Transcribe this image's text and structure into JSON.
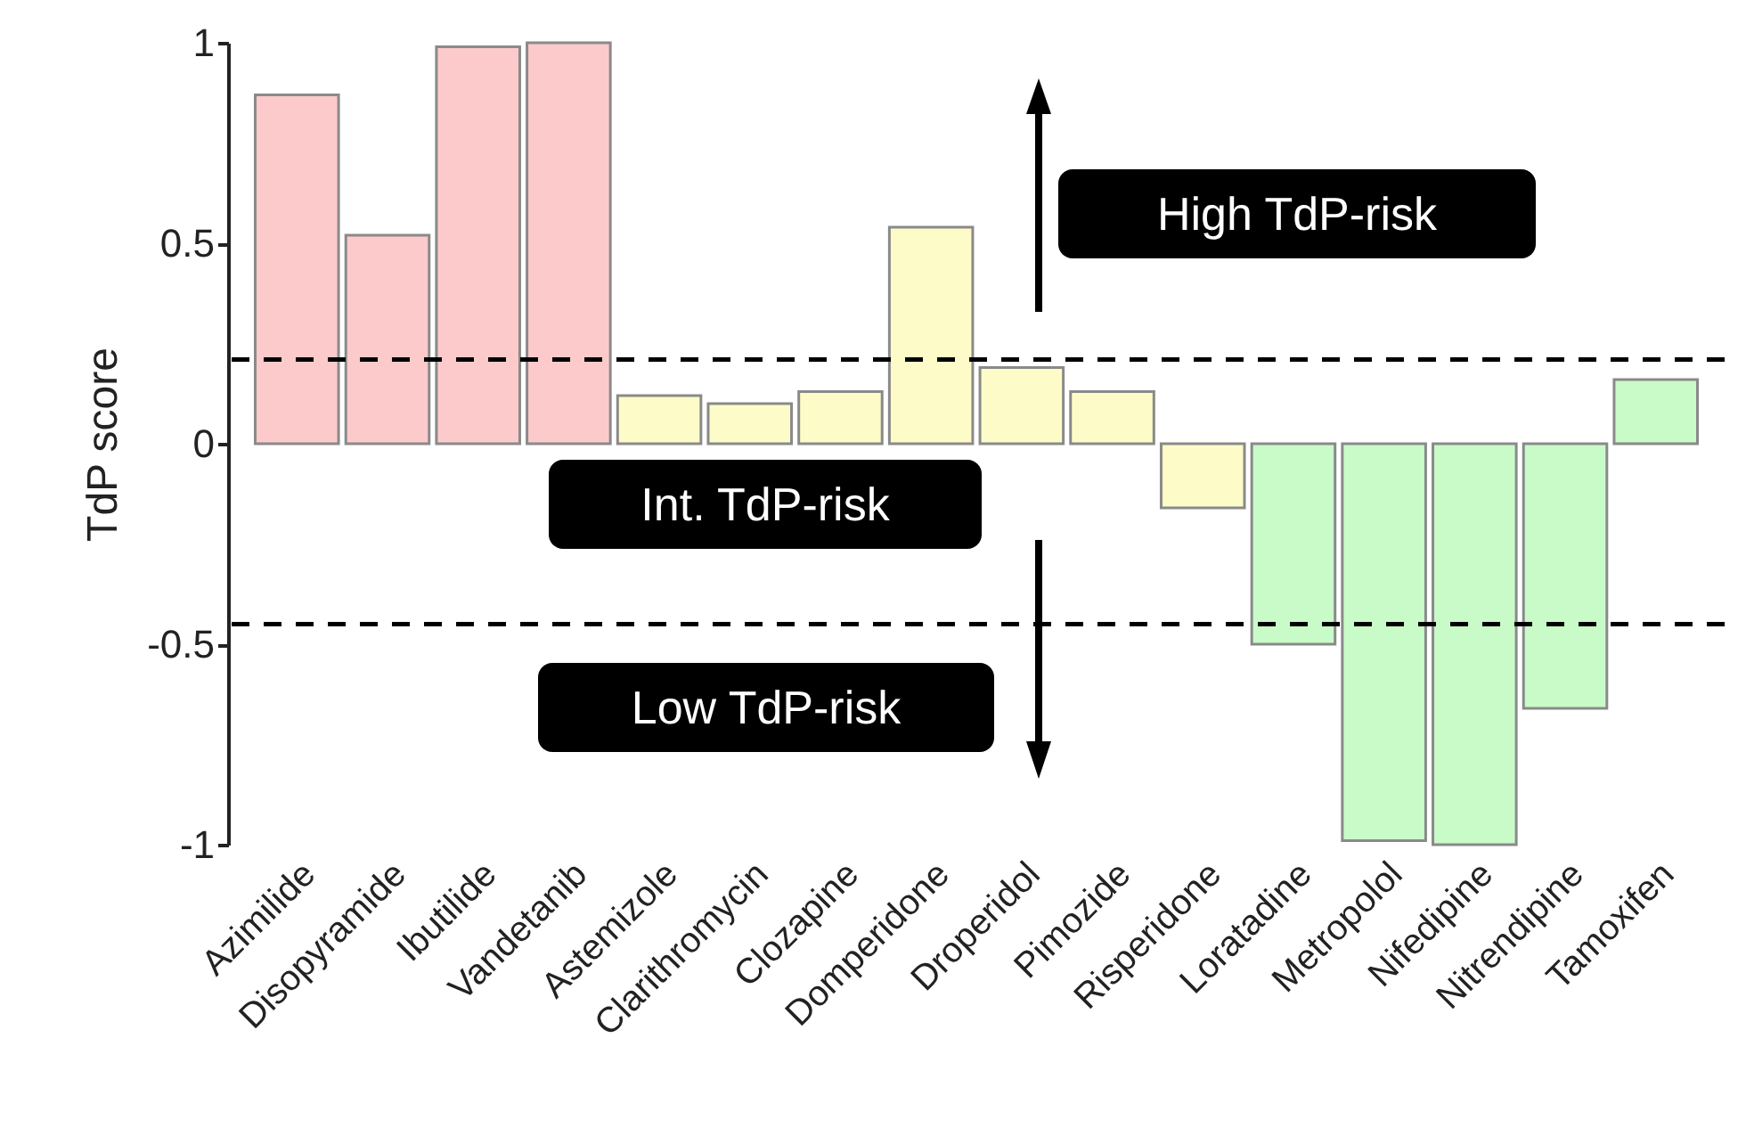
{
  "chart_data": {
    "type": "bar",
    "ylabel": "TdP score",
    "categories": [
      "Azimilide",
      "Disopyramide",
      "Ibutilide",
      "Vandetanib",
      "Astemizole",
      "Clarithromycin",
      "Clozapine",
      "Domperidone",
      "Droperidol",
      "Pimozide",
      "Risperidone",
      "Loratadine",
      "Metropolol",
      "Nifedipine",
      "Nitrendipine",
      "Tamoxifen"
    ],
    "values": [
      0.87,
      0.52,
      0.99,
      1.0,
      0.12,
      0.1,
      0.13,
      0.54,
      0.19,
      0.13,
      -0.16,
      -0.5,
      -0.99,
      -1.0,
      -0.66,
      0.16
    ],
    "colors": [
      "#fccaca",
      "#fccaca",
      "#fccaca",
      "#fccaca",
      "#fdfcc8",
      "#fdfcc8",
      "#fdfcc8",
      "#fdfcc8",
      "#fdfcc8",
      "#fdfcc8",
      "#fdfcc8",
      "#c9fbc9",
      "#c9fbc9",
      "#c9fbc9",
      "#c9fbc9",
      "#c9fbc9"
    ],
    "ylim": [
      -1,
      1
    ],
    "yticks": [
      -1,
      -0.5,
      0,
      0.5,
      1
    ],
    "ref_lines": [
      {
        "axis": "y",
        "value": 0.21,
        "color": "#000000",
        "line_style": "dashed"
      },
      {
        "axis": "y",
        "value": -0.45,
        "color": "#000000",
        "line_style": "dashed"
      }
    ],
    "annotations": [
      "High TdP-risk",
      "Int. TdP-risk",
      "Low TdP-risk"
    ],
    "grid": false
  }
}
